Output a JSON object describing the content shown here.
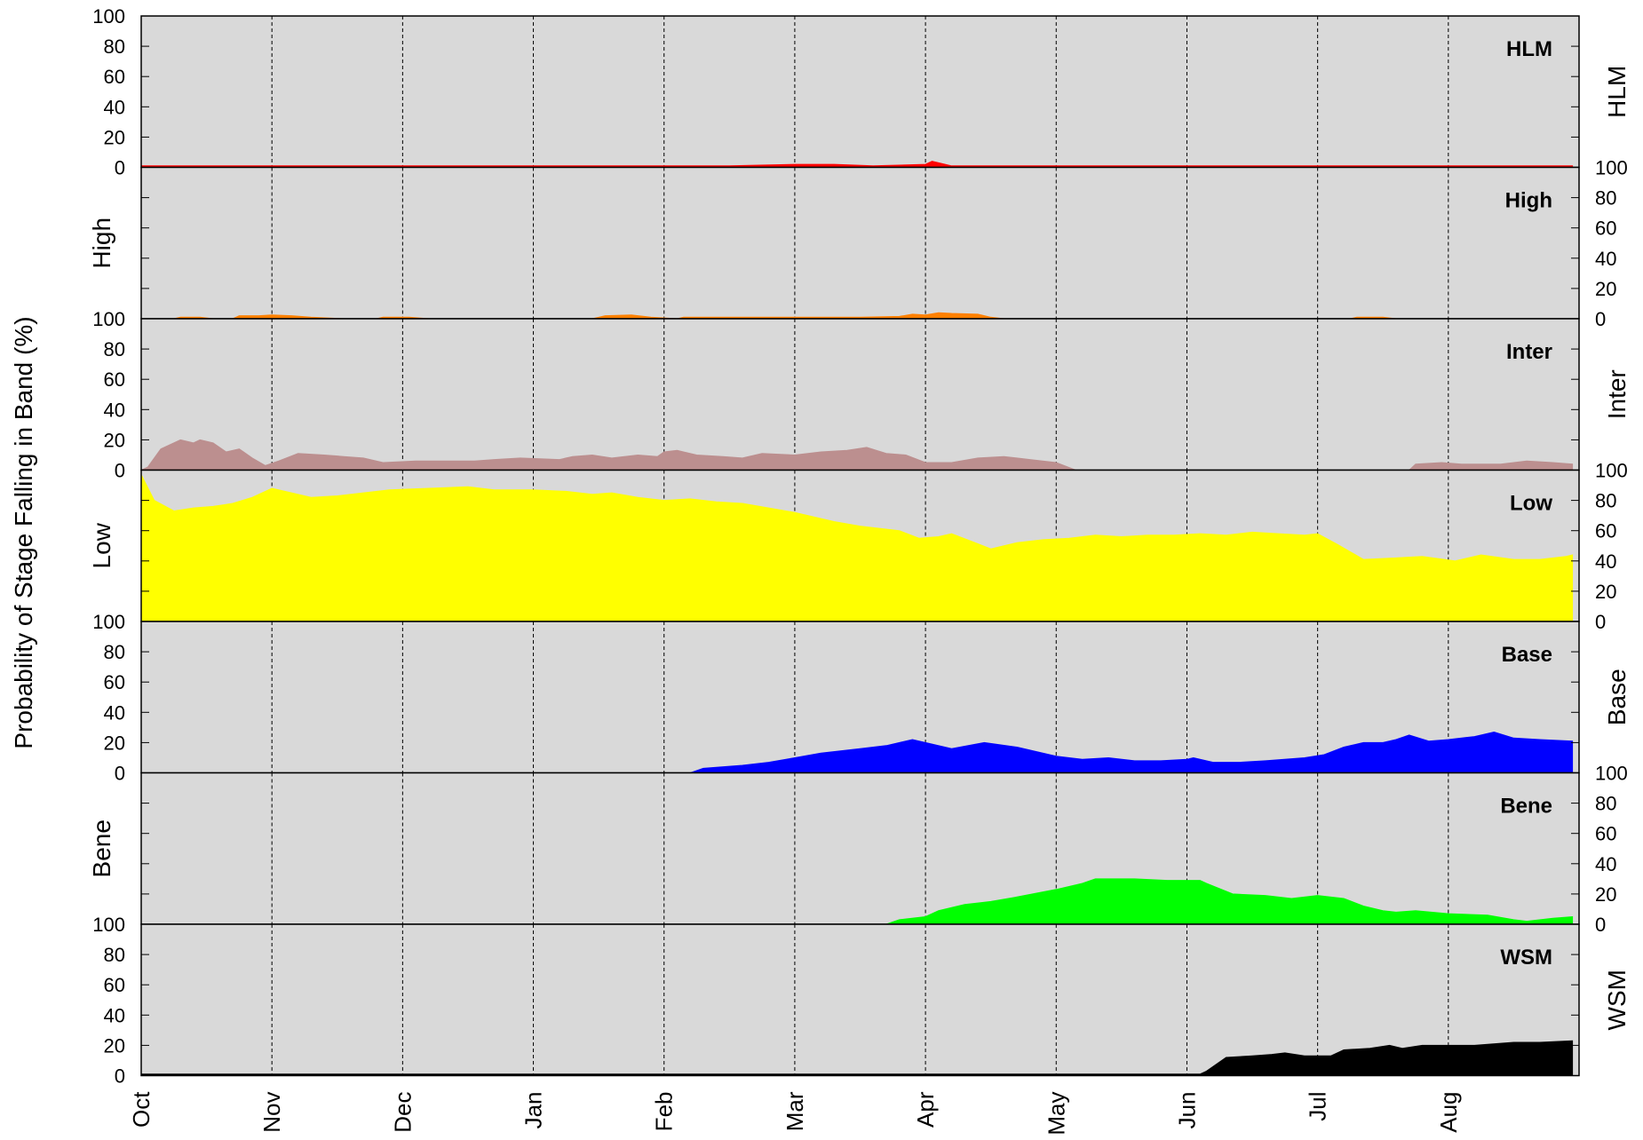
{
  "chart_data": {
    "type": "area",
    "ylabel": "Probability of Stage Falling in Band (%)",
    "months": [
      "Oct",
      "Nov",
      "Dec",
      "Jan",
      "Feb",
      "Mar",
      "Apr",
      "May",
      "Jun",
      "Jul",
      "Aug"
    ],
    "ylim": [
      0,
      100
    ],
    "yticks": [
      0,
      20,
      40,
      60,
      80,
      100
    ],
    "grid": "vertical dashed at month starts",
    "background": "#d9d9d9",
    "panels": [
      {
        "name": "HLM",
        "color": "#ff0000",
        "side_label": "HLM",
        "points": [
          [
            0,
            1
          ],
          [
            1,
            1
          ],
          [
            2,
            1
          ],
          [
            3,
            1
          ],
          [
            4,
            1
          ],
          [
            4.5,
            1
          ],
          [
            5,
            2
          ],
          [
            5.3,
            2
          ],
          [
            5.6,
            1
          ],
          [
            6,
            2
          ],
          [
            6.05,
            4
          ],
          [
            6.1,
            3
          ],
          [
            6.2,
            1
          ],
          [
            7,
            1
          ],
          [
            8,
            1
          ],
          [
            9,
            1
          ],
          [
            10,
            1
          ],
          [
            10.95,
            1
          ]
        ]
      },
      {
        "name": "High",
        "color": "#ff8000",
        "side_label": "High",
        "points": [
          [
            0,
            0
          ],
          [
            0.25,
            0
          ],
          [
            0.3,
            1
          ],
          [
            0.45,
            1
          ],
          [
            0.55,
            0
          ],
          [
            0.7,
            0
          ],
          [
            0.75,
            2
          ],
          [
            0.9,
            2
          ],
          [
            1,
            2.5
          ],
          [
            1.15,
            2
          ],
          [
            1.3,
            1
          ],
          [
            1.55,
            0
          ],
          [
            1.8,
            0
          ],
          [
            1.85,
            1
          ],
          [
            2.05,
            1
          ],
          [
            2.2,
            0
          ],
          [
            3.45,
            0
          ],
          [
            3.55,
            2
          ],
          [
            3.75,
            2.5
          ],
          [
            3.9,
            1
          ],
          [
            4.1,
            0
          ],
          [
            4.15,
            1
          ],
          [
            4.5,
            1
          ],
          [
            4.7,
            1
          ],
          [
            5,
            1
          ],
          [
            5.5,
            1
          ],
          [
            5.8,
            1.5
          ],
          [
            5.9,
            3
          ],
          [
            6,
            2.5
          ],
          [
            6.1,
            4
          ],
          [
            6.2,
            3.5
          ],
          [
            6.4,
            3
          ],
          [
            6.5,
            1
          ],
          [
            6.6,
            0
          ],
          [
            9.25,
            0
          ],
          [
            9.3,
            1
          ],
          [
            9.5,
            1
          ],
          [
            9.6,
            0
          ],
          [
            10.95,
            0
          ]
        ]
      },
      {
        "name": "Inter",
        "color": "#bc8f8f",
        "side_label": "Inter",
        "points": [
          [
            0,
            0
          ],
          [
            0.05,
            2
          ],
          [
            0.15,
            14
          ],
          [
            0.3,
            20
          ],
          [
            0.4,
            18
          ],
          [
            0.45,
            20
          ],
          [
            0.55,
            18
          ],
          [
            0.65,
            12
          ],
          [
            0.75,
            14
          ],
          [
            0.85,
            8
          ],
          [
            0.95,
            3
          ],
          [
            1.05,
            6
          ],
          [
            1.2,
            11
          ],
          [
            1.4,
            10
          ],
          [
            1.55,
            9
          ],
          [
            1.7,
            8
          ],
          [
            1.85,
            5
          ],
          [
            2.1,
            6
          ],
          [
            2.3,
            6
          ],
          [
            2.55,
            6
          ],
          [
            2.7,
            7
          ],
          [
            2.9,
            8
          ],
          [
            3.2,
            7
          ],
          [
            3.3,
            9
          ],
          [
            3.45,
            10
          ],
          [
            3.6,
            8
          ],
          [
            3.8,
            10
          ],
          [
            3.95,
            9
          ],
          [
            4,
            12
          ],
          [
            4.1,
            13
          ],
          [
            4.25,
            10
          ],
          [
            4.45,
            9
          ],
          [
            4.6,
            8
          ],
          [
            4.75,
            11
          ],
          [
            5,
            10
          ],
          [
            5.2,
            12
          ],
          [
            5.4,
            13
          ],
          [
            5.55,
            15
          ],
          [
            5.7,
            11
          ],
          [
            5.85,
            10
          ],
          [
            6,
            5
          ],
          [
            6.2,
            5
          ],
          [
            6.4,
            8
          ],
          [
            6.6,
            9
          ],
          [
            6.8,
            7
          ],
          [
            7,
            5
          ],
          [
            7.15,
            0
          ],
          [
            7.2,
            0
          ],
          [
            9.7,
            0
          ],
          [
            9.75,
            4
          ],
          [
            9.95,
            5
          ],
          [
            10.1,
            4
          ],
          [
            10.4,
            4
          ],
          [
            10.6,
            6
          ],
          [
            10.8,
            5
          ],
          [
            10.95,
            4
          ]
        ]
      },
      {
        "name": "Low",
        "color": "#ffff00",
        "side_label": "Low",
        "points": [
          [
            0,
            97
          ],
          [
            0.1,
            80
          ],
          [
            0.25,
            73
          ],
          [
            0.4,
            75
          ],
          [
            0.55,
            76
          ],
          [
            0.7,
            78
          ],
          [
            0.85,
            82
          ],
          [
            1,
            88
          ],
          [
            1.15,
            85
          ],
          [
            1.3,
            82
          ],
          [
            1.5,
            83
          ],
          [
            1.7,
            85
          ],
          [
            1.9,
            87
          ],
          [
            2.2,
            88
          ],
          [
            2.5,
            89
          ],
          [
            2.7,
            87
          ],
          [
            3,
            87
          ],
          [
            3.25,
            86
          ],
          [
            3.45,
            84
          ],
          [
            3.6,
            85
          ],
          [
            3.8,
            82
          ],
          [
            4,
            80
          ],
          [
            4.2,
            81
          ],
          [
            4.4,
            79
          ],
          [
            4.6,
            78
          ],
          [
            4.8,
            75
          ],
          [
            5,
            72
          ],
          [
            5.3,
            66
          ],
          [
            5.5,
            63
          ],
          [
            5.8,
            60
          ],
          [
            5.95,
            55
          ],
          [
            6.1,
            56
          ],
          [
            6.2,
            58
          ],
          [
            6.35,
            53
          ],
          [
            6.5,
            48
          ],
          [
            6.7,
            52
          ],
          [
            6.9,
            54
          ],
          [
            7.1,
            55
          ],
          [
            7.3,
            57
          ],
          [
            7.5,
            56
          ],
          [
            7.7,
            57
          ],
          [
            7.9,
            57
          ],
          [
            8.1,
            58
          ],
          [
            8.3,
            57
          ],
          [
            8.5,
            59
          ],
          [
            8.7,
            58
          ],
          [
            8.9,
            57
          ],
          [
            9,
            58
          ],
          [
            9.15,
            51
          ],
          [
            9.35,
            41
          ],
          [
            9.6,
            42
          ],
          [
            9.8,
            43
          ],
          [
            10.05,
            40
          ],
          [
            10.25,
            44
          ],
          [
            10.5,
            41
          ],
          [
            10.7,
            41
          ],
          [
            10.9,
            43
          ],
          [
            10.95,
            44
          ]
        ]
      },
      {
        "name": "Base",
        "color": "#0000ff",
        "side_label": "Base",
        "points": [
          [
            0,
            0
          ],
          [
            4.2,
            0
          ],
          [
            4.3,
            3
          ],
          [
            4.6,
            5
          ],
          [
            4.8,
            7
          ],
          [
            5,
            10
          ],
          [
            5.2,
            13
          ],
          [
            5.5,
            16
          ],
          [
            5.7,
            18
          ],
          [
            5.9,
            22
          ],
          [
            6.05,
            19
          ],
          [
            6.2,
            16
          ],
          [
            6.45,
            20
          ],
          [
            6.7,
            17
          ],
          [
            7,
            11
          ],
          [
            7.2,
            9
          ],
          [
            7.4,
            10
          ],
          [
            7.6,
            8
          ],
          [
            7.8,
            8
          ],
          [
            8,
            9
          ],
          [
            8.05,
            10
          ],
          [
            8.2,
            7
          ],
          [
            8.4,
            7
          ],
          [
            8.6,
            8
          ],
          [
            8.9,
            10
          ],
          [
            9.05,
            12
          ],
          [
            9.2,
            17
          ],
          [
            9.35,
            20
          ],
          [
            9.5,
            20
          ],
          [
            9.6,
            22
          ],
          [
            9.7,
            25
          ],
          [
            9.85,
            21
          ],
          [
            10,
            22
          ],
          [
            10.2,
            24
          ],
          [
            10.35,
            27
          ],
          [
            10.5,
            23
          ],
          [
            10.7,
            22
          ],
          [
            10.95,
            21
          ]
        ]
      },
      {
        "name": "Bene",
        "color": "#00ff00",
        "side_label": "Bene",
        "points": [
          [
            0,
            0
          ],
          [
            5.7,
            0
          ],
          [
            5.8,
            3
          ],
          [
            6,
            5
          ],
          [
            6.1,
            9
          ],
          [
            6.3,
            13
          ],
          [
            6.5,
            15
          ],
          [
            6.7,
            18
          ],
          [
            7,
            23
          ],
          [
            7.2,
            27
          ],
          [
            7.3,
            30
          ],
          [
            7.6,
            30
          ],
          [
            7.85,
            29
          ],
          [
            8.1,
            29
          ],
          [
            8.15,
            27
          ],
          [
            8.35,
            20
          ],
          [
            8.6,
            19
          ],
          [
            8.8,
            17
          ],
          [
            9,
            19
          ],
          [
            9.2,
            17
          ],
          [
            9.35,
            12
          ],
          [
            9.5,
            9
          ],
          [
            9.6,
            8
          ],
          [
            9.75,
            9
          ],
          [
            10,
            7
          ],
          [
            10.3,
            6
          ],
          [
            10.5,
            3
          ],
          [
            10.6,
            2
          ],
          [
            10.8,
            4
          ],
          [
            10.95,
            5
          ]
        ]
      },
      {
        "name": "WSM",
        "color": "#000000",
        "side_label": "WSM",
        "points": [
          [
            0,
            1
          ],
          [
            8.1,
            1
          ],
          [
            8.15,
            3
          ],
          [
            8.3,
            12
          ],
          [
            8.5,
            13
          ],
          [
            8.65,
            14
          ],
          [
            8.75,
            15
          ],
          [
            8.9,
            13
          ],
          [
            9.1,
            13
          ],
          [
            9.2,
            17
          ],
          [
            9.4,
            18
          ],
          [
            9.55,
            20
          ],
          [
            9.65,
            18
          ],
          [
            9.8,
            20
          ],
          [
            10,
            20
          ],
          [
            10.2,
            20
          ],
          [
            10.5,
            22
          ],
          [
            10.7,
            22
          ],
          [
            10.95,
            23
          ]
        ]
      }
    ]
  }
}
